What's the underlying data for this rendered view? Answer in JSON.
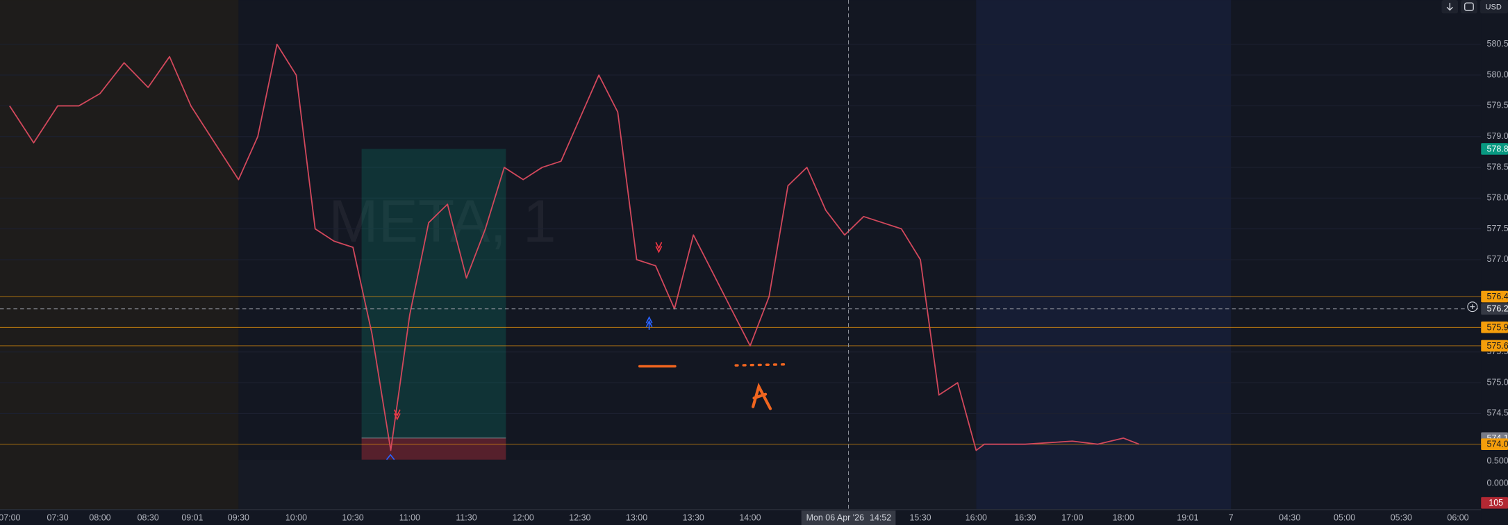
{
  "chart_data": {
    "type": "line",
    "watermark": "META, 1",
    "currency": "USD",
    "x": [
      "07:00",
      "07:15",
      "07:30",
      "07:45",
      "08:00",
      "08:15",
      "08:30",
      "08:45",
      "09:00",
      "09:15",
      "09:30",
      "09:40",
      "09:50",
      "10:00",
      "10:10",
      "10:20",
      "10:30",
      "10:40",
      "10:50",
      "11:00",
      "11:10",
      "11:20",
      "11:30",
      "11:40",
      "11:50",
      "12:00",
      "12:10",
      "12:20",
      "12:30",
      "12:40",
      "12:50",
      "13:00",
      "13:10",
      "13:20",
      "13:30",
      "13:40",
      "13:50",
      "14:00",
      "14:10",
      "14:20",
      "14:30",
      "14:40",
      "14:50",
      "15:00",
      "15:10",
      "15:20",
      "15:30",
      "15:40",
      "15:50",
      "16:00",
      "16:05",
      "16:30",
      "17:00",
      "17:30",
      "18:00",
      "18:15"
    ],
    "series": [
      {
        "color": "#d2485c",
        "values": [
          579.5,
          578.9,
          579.5,
          579.5,
          579.7,
          580.2,
          579.8,
          580.3,
          579.5,
          578.9,
          578.3,
          579.0,
          580.5,
          580.0,
          577.5,
          577.3,
          577.2,
          575.8,
          573.9,
          576.1,
          577.6,
          577.9,
          576.7,
          577.5,
          578.5,
          578.3,
          578.5,
          578.6,
          579.3,
          580.0,
          579.4,
          577.0,
          576.9,
          576.2,
          577.4,
          576.8,
          576.2,
          575.6,
          576.4,
          578.2,
          578.5,
          577.8,
          577.4,
          577.7,
          577.6,
          577.5,
          577.0,
          574.8,
          575.0,
          573.9,
          574.0,
          574.0,
          574.05,
          574.0,
          574.1,
          574.0
        ]
      }
    ],
    "ylim": [
      573.75,
      581.22
    ],
    "yticks": [
      580.5,
      {
        "value": 580,
        "label": "580.0"
      },
      579.5,
      {
        "value": 579,
        "label": "579.0"
      },
      578.5,
      {
        "value": 578,
        "label": "578.0"
      },
      577.5,
      {
        "value": 577,
        "label": "577.0"
      },
      575.5,
      {
        "value": 575,
        "label": "575.0"
      },
      574.5
    ],
    "grid": true,
    "xticks": [
      "07:00",
      "07:30",
      "08:00",
      "08:30",
      "09:01",
      "09:30",
      "10:00",
      "10:30",
      "11:00",
      "11:30",
      "12:00",
      "12:30",
      "13:00",
      "13:30",
      "14:00",
      "15:30",
      "16:00",
      "16:30",
      "17:00",
      "18:00",
      "19:01",
      "7",
      "04:30",
      "05:00",
      "05:30",
      "06:00"
    ],
    "levels": [
      576.4,
      575.9,
      575.6,
      {
        "value": 574,
        "label": "574.0"
      }
    ],
    "level_color": "#f59e0b",
    "position": {
      "target": 578.8,
      "entry": 574.1,
      "target_color": "#089981",
      "entry_color": "#787b86"
    },
    "crosshair": {
      "price": 576.2,
      "date": "Mon 06 Apr '26",
      "clock": "14:52"
    },
    "indicator": {
      "ylim": [
        -0.59,
        0.54
      ],
      "yticks": [
        {
          "value": 0.5,
          "label": "0.500"
        },
        {
          "value": 0,
          "label": "0.000"
        }
      ],
      "last": 105,
      "last_color": "#b22833"
    }
  }
}
